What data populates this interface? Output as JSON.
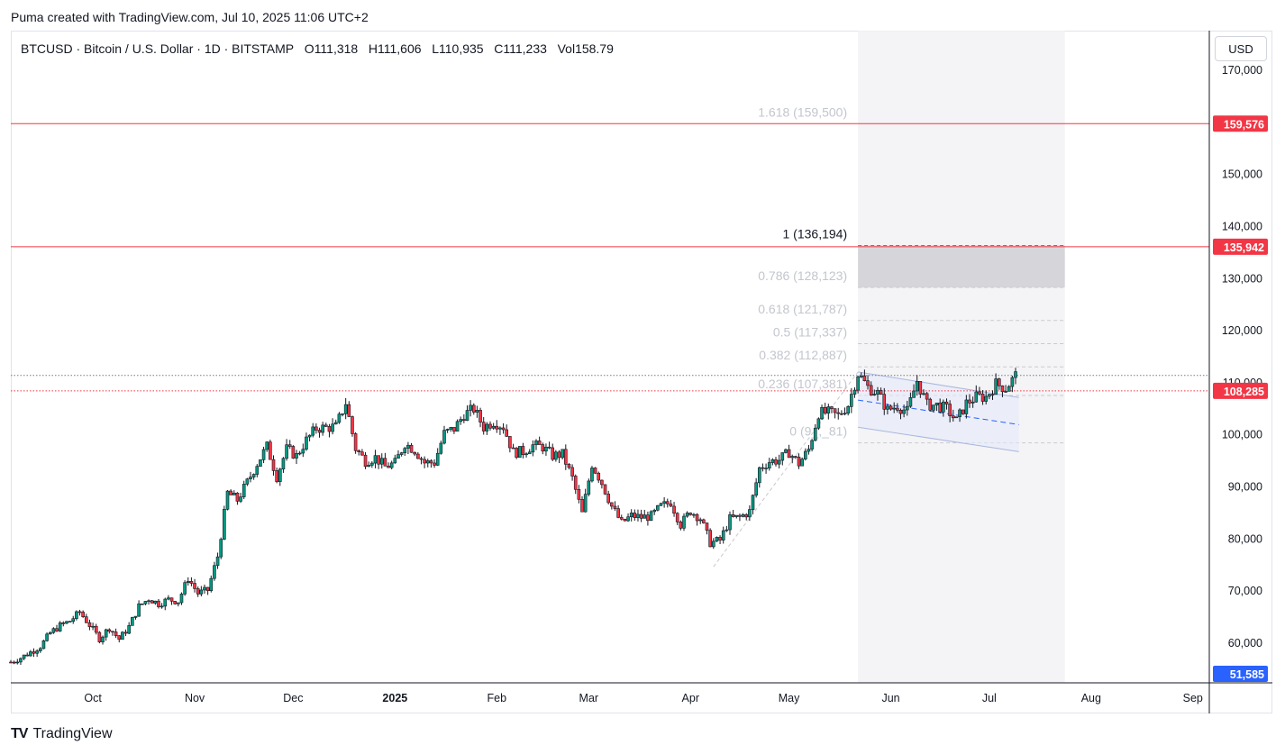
{
  "header": {
    "created_note": "Puma created with TradingView.com, Jul 10, 2025 11:06 UTC+2"
  },
  "legend": {
    "symbol": "BTCUSD · Bitcoin / U.S. Dollar · 1D · BITSTAMP",
    "open_label": "O",
    "open": "111,318",
    "high_label": "H",
    "high": "111,606",
    "low_label": "L",
    "low": "110,935",
    "close_label": "C",
    "close": "111,233",
    "vol_label": "Vol",
    "vol": "158.79"
  },
  "currency_button": "USD",
  "brand": {
    "logo": "TV",
    "name": "TradingView"
  },
  "colors": {
    "up": "#089981",
    "down": "#f23645",
    "hline": "#f23645",
    "axis_badge_blue": "#2962ff"
  },
  "chart_data": {
    "type": "candlestick",
    "price_axis": {
      "ticks": [
        60000,
        70000,
        80000,
        90000,
        100000,
        110000,
        120000,
        130000,
        140000,
        150000,
        160000,
        170000
      ],
      "tick_labels": [
        "60,000",
        "70,000",
        "80,000",
        "90,000",
        "100,000",
        "110,000",
        "120,000",
        "130,000",
        "140,000",
        "150,000",
        "160,000",
        "170,000"
      ],
      "range": [
        51585,
        172000
      ]
    },
    "time_axis": {
      "labels": [
        "Oct",
        "Nov",
        "Dec",
        "2025",
        "Feb",
        "Mar",
        "Apr",
        "May",
        "Jun",
        "Jul",
        "Aug",
        "Sep"
      ],
      "dates": [
        "2024-10-01",
        "2024-11-01",
        "2024-12-01",
        "2025-01-01",
        "2025-02-01",
        "2025-03-01",
        "2025-04-01",
        "2025-05-01",
        "2025-06-01",
        "2025-07-01",
        "2025-08-01",
        "2025-09-01"
      ],
      "range": [
        "2024-09-06",
        "2025-09-06"
      ]
    },
    "price_badges": [
      {
        "label": "159,576",
        "value": 159576,
        "color": "#f23645"
      },
      {
        "label": "135,942",
        "value": 135942,
        "color": "#f23645"
      },
      {
        "label": "108,285",
        "value": 108285,
        "color": "#f23645"
      },
      {
        "label": "51,585",
        "value": 51585,
        "color": "#2962ff"
      }
    ],
    "horizontal_lines": [
      {
        "value": 159576,
        "style": "solid",
        "color": "#f23645"
      },
      {
        "value": 135942,
        "style": "solid",
        "color": "#f23645"
      },
      {
        "value": 108285,
        "style": "dotted",
        "color": "#f23645"
      },
      {
        "value": 111233,
        "style": "dotted",
        "color": "#787b86"
      }
    ],
    "fibonacci": {
      "levels": [
        {
          "ratio": "0",
          "label": "0 (9_,_81)",
          "value": 98281
        },
        {
          "ratio": "0.236",
          "label": "0.236 (107,381)",
          "value": 107381
        },
        {
          "ratio": "0.382",
          "label": "0.382 (112,887)",
          "value": 112887
        },
        {
          "ratio": "0.5",
          "label": "0.5 (117,337)",
          "value": 117337
        },
        {
          "ratio": "0.618",
          "label": "0.618 (121,787)",
          "value": 121787
        },
        {
          "ratio": "0.786",
          "label": "0.786 (128,123)",
          "value": 128123
        },
        {
          "ratio": "1",
          "label": "1 (136,194)",
          "value": 136194
        },
        {
          "ratio": "1.618",
          "label": "1.618 (159,500)",
          "value": 159500
        }
      ],
      "time_span": [
        "2025-05-22",
        "2025-07-24"
      ]
    },
    "channel": {
      "upper": [
        {
          "date": "2025-05-22",
          "value": 111900
        },
        {
          "date": "2025-07-10",
          "value": 107000
        }
      ],
      "middle": [
        {
          "date": "2025-05-22",
          "value": 106500
        },
        {
          "date": "2025-07-10",
          "value": 101800
        }
      ],
      "lower": [
        {
          "date": "2025-05-22",
          "value": 101300
        },
        {
          "date": "2025-07-10",
          "value": 96600
        }
      ]
    },
    "trend_line": [
      {
        "date": "2025-04-08",
        "value": 74500
      },
      {
        "date": "2025-05-22",
        "value": 111900
      }
    ],
    "closes": [
      [
        "2024-09-06",
        56200
      ],
      [
        "2024-09-09",
        57000
      ],
      [
        "2024-09-12",
        58100
      ],
      [
        "2024-09-15",
        59200
      ],
      [
        "2024-09-18",
        61800
      ],
      [
        "2024-09-21",
        63200
      ],
      [
        "2024-09-24",
        64100
      ],
      [
        "2024-09-27",
        65800
      ],
      [
        "2024-09-30",
        63300
      ],
      [
        "2024-10-03",
        60700
      ],
      [
        "2024-10-06",
        62800
      ],
      [
        "2024-10-09",
        60600
      ],
      [
        "2024-10-12",
        63000
      ],
      [
        "2024-10-15",
        66900
      ],
      [
        "2024-10-18",
        68400
      ],
      [
        "2024-10-21",
        67400
      ],
      [
        "2024-10-24",
        68200
      ],
      [
        "2024-10-27",
        67900
      ],
      [
        "2024-10-30",
        72300
      ],
      [
        "2024-11-02",
        69400
      ],
      [
        "2024-11-05",
        70000
      ],
      [
        "2024-11-08",
        76500
      ],
      [
        "2024-11-11",
        88700
      ],
      [
        "2024-11-14",
        87300
      ],
      [
        "2024-11-17",
        90700
      ],
      [
        "2024-11-20",
        94300
      ],
      [
        "2024-11-23",
        97600
      ],
      [
        "2024-11-26",
        91800
      ],
      [
        "2024-11-29",
        97100
      ],
      [
        "2024-12-02",
        95800
      ],
      [
        "2024-12-05",
        98800
      ],
      [
        "2024-12-08",
        101100
      ],
      [
        "2024-12-11",
        101200
      ],
      [
        "2024-12-14",
        101400
      ],
      [
        "2024-12-17",
        106000
      ],
      [
        "2024-12-20",
        97200
      ],
      [
        "2024-12-23",
        94800
      ],
      [
        "2024-12-26",
        95500
      ],
      [
        "2024-12-29",
        93700
      ],
      [
        "2025-01-01",
        94400
      ],
      [
        "2025-01-04",
        98200
      ],
      [
        "2025-01-07",
        96900
      ],
      [
        "2025-01-10",
        94500
      ],
      [
        "2025-01-13",
        94500
      ],
      [
        "2025-01-16",
        100100
      ],
      [
        "2025-01-19",
        101000
      ],
      [
        "2025-01-22",
        103700
      ],
      [
        "2025-01-25",
        104800
      ],
      [
        "2025-01-28",
        101300
      ],
      [
        "2025-01-31",
        102400
      ],
      [
        "2025-02-03",
        101400
      ],
      [
        "2025-02-06",
        96500
      ],
      [
        "2025-02-09",
        96600
      ],
      [
        "2025-02-12",
        97800
      ],
      [
        "2025-02-15",
        97500
      ],
      [
        "2025-02-18",
        95800
      ],
      [
        "2025-02-21",
        96100
      ],
      [
        "2025-02-24",
        91500
      ],
      [
        "2025-02-27",
        84700
      ],
      [
        "2025-03-02",
        94200
      ],
      [
        "2025-03-05",
        90600
      ],
      [
        "2025-03-08",
        86100
      ],
      [
        "2025-03-11",
        82900
      ],
      [
        "2025-03-14",
        84300
      ],
      [
        "2025-03-17",
        84000
      ],
      [
        "2025-03-20",
        84200
      ],
      [
        "2025-03-23",
        86100
      ],
      [
        "2025-03-26",
        86900
      ],
      [
        "2025-03-29",
        82600
      ],
      [
        "2025-04-01",
        85200
      ],
      [
        "2025-04-04",
        83800
      ],
      [
        "2025-04-07",
        79100
      ],
      [
        "2025-04-10",
        79600
      ],
      [
        "2025-04-13",
        83700
      ],
      [
        "2025-04-16",
        84000
      ],
      [
        "2025-04-19",
        85100
      ],
      [
        "2025-04-22",
        93400
      ],
      [
        "2025-04-25",
        94700
      ],
      [
        "2025-04-28",
        95000
      ],
      [
        "2025-05-01",
        96500
      ],
      [
        "2025-05-04",
        94300
      ],
      [
        "2025-05-07",
        97000
      ],
      [
        "2025-05-10",
        104000
      ],
      [
        "2025-05-13",
        104100
      ],
      [
        "2025-05-16",
        103500
      ],
      [
        "2025-05-19",
        105600
      ],
      [
        "2025-05-22",
        111600
      ],
      [
        "2025-05-25",
        109000
      ],
      [
        "2025-05-28",
        107800
      ],
      [
        "2025-05-31",
        104600
      ],
      [
        "2025-06-03",
        105400
      ],
      [
        "2025-06-06",
        104300
      ],
      [
        "2025-06-09",
        110200
      ],
      [
        "2025-06-12",
        105600
      ],
      [
        "2025-06-15",
        105500
      ],
      [
        "2025-06-18",
        104800
      ],
      [
        "2025-06-21",
        102500
      ],
      [
        "2025-06-24",
        105900
      ],
      [
        "2025-06-27",
        107100
      ],
      [
        "2025-06-30",
        107100
      ],
      [
        "2025-07-03",
        109600
      ],
      [
        "2025-07-06",
        108800
      ],
      [
        "2025-07-09",
        111200
      ],
      [
        "2025-07-10",
        111233
      ]
    ]
  }
}
